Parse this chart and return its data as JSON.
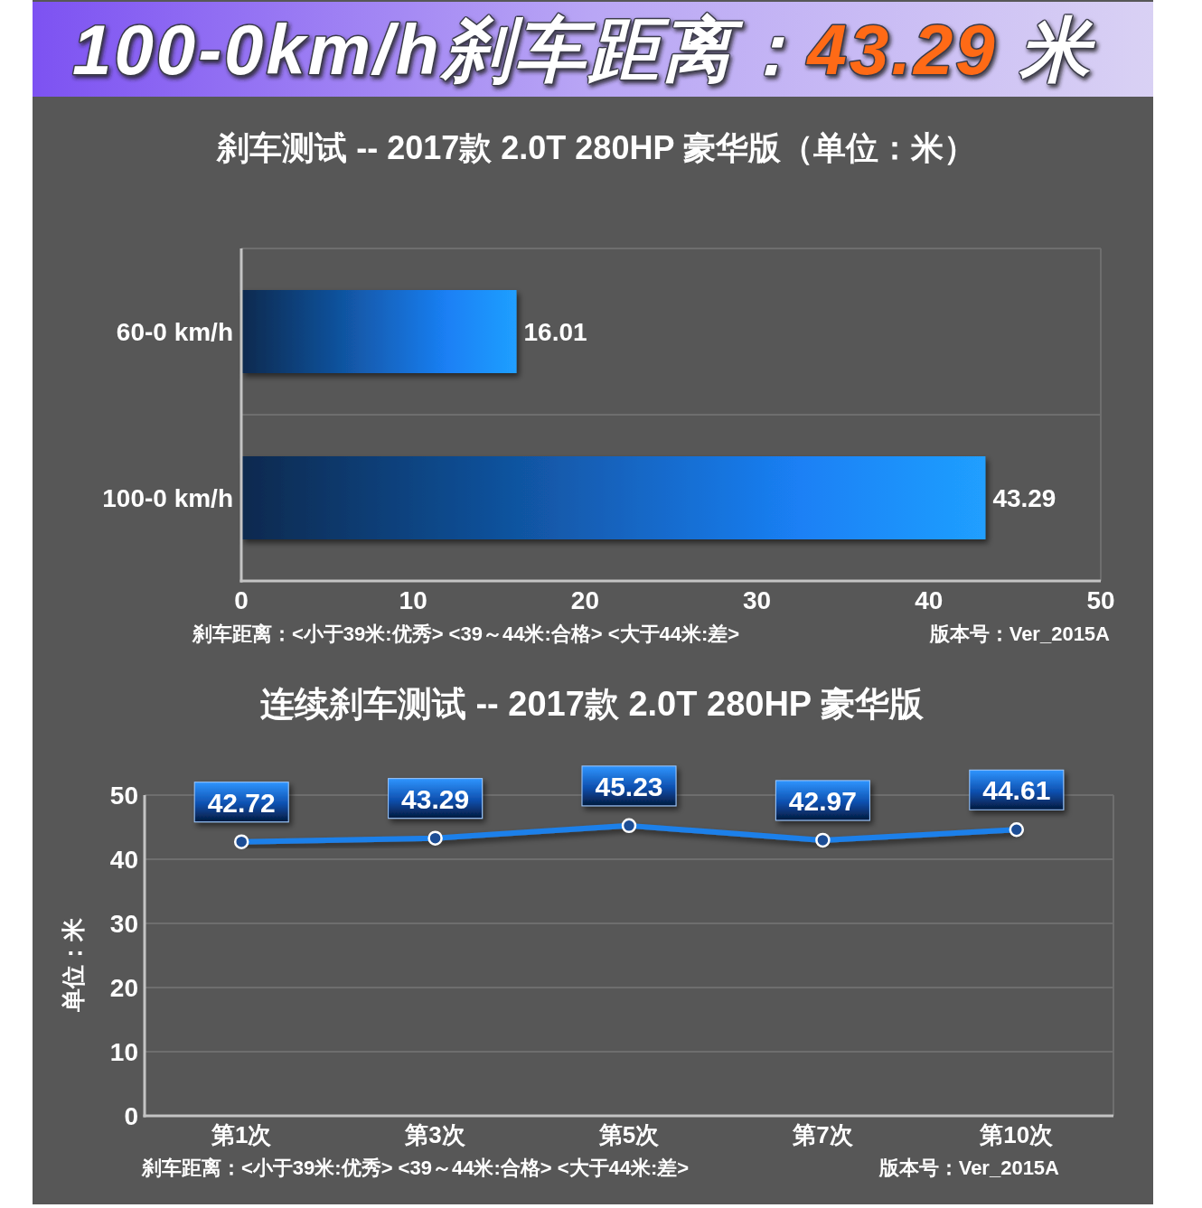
{
  "chart_data": [
    {
      "type": "bar",
      "orientation": "horizontal",
      "title": "100-0km/h刹车距离：43.29 米",
      "subtitle": "刹车测试 -- 2017款 2.0T 280HP 豪华版（单位：米）",
      "categories": [
        "60-0 km/h",
        "100-0 km/h"
      ],
      "values": [
        16.01,
        43.29
      ],
      "color": "#1a80f5",
      "xlim": [
        0,
        50
      ],
      "xticks": [
        0,
        10,
        20,
        30,
        40,
        50
      ],
      "grid": "y",
      "data_labels": true,
      "annotations": [
        "刹车距离：<小于39米:优秀> <39～44米:合格> <大于44米:差>",
        "版本号：Ver_2015A"
      ]
    },
    {
      "type": "line",
      "title": "连续刹车测试 -- 2017款 2.0T 280HP 豪华版",
      "ylabel": "单位：米",
      "categories": [
        "第1次",
        "第3次",
        "第5次",
        "第7次",
        "第10次"
      ],
      "values": [
        42.72,
        43.29,
        45.23,
        42.97,
        44.61
      ],
      "color": "#1f80ea",
      "ylim": [
        0,
        50
      ],
      "yticks": [
        0,
        10,
        20,
        30,
        40,
        50
      ],
      "grid": "y",
      "marker": "circle",
      "line_style": "solid",
      "data_labels": true,
      "annotations": [
        "刹车距离：<小于39米:优秀> <39～44米:合格> <大于44米:差>",
        "版本号：Ver_2015A"
      ]
    }
  ]
}
